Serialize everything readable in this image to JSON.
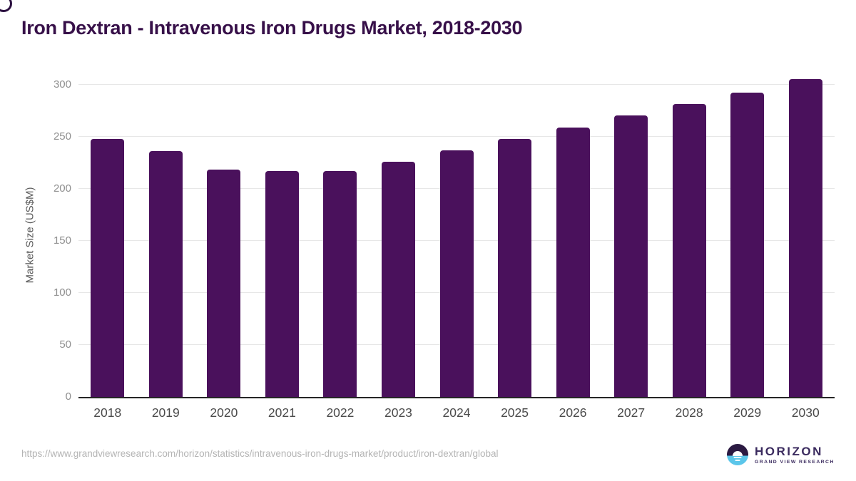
{
  "header": {
    "title": "Iron Dextran - Intravenous Iron Drugs Market, 2018-2030"
  },
  "chart_data": {
    "type": "bar",
    "title": "Iron Dextran - Intravenous Iron Drugs Market, 2018-2030",
    "categories": [
      "2018",
      "2019",
      "2020",
      "2021",
      "2022",
      "2023",
      "2024",
      "2025",
      "2026",
      "2027",
      "2028",
      "2029",
      "2030"
    ],
    "values": [
      248,
      236,
      218,
      217,
      217,
      226,
      237,
      248,
      259,
      270,
      281,
      292,
      305
    ],
    "xlabel": "",
    "ylabel": "Market Size (US$M)",
    "ylim": [
      0,
      310
    ],
    "yticks": [
      0,
      50,
      100,
      150,
      200,
      250,
      300
    ],
    "grid": true,
    "legend": "none",
    "bar_color": "#4A115C",
    "gridline_color": "#e7e7e7",
    "axis_line_color": "#262626",
    "title_color": "#371049"
  },
  "footer": {
    "source_url": "https://www.grandviewresearch.com/horizon/statistics/intravenous-iron-drugs-market/product/iron-dextran/global",
    "logo": {
      "icon": "horizon-sun-circle-icon",
      "brand": "HORIZON",
      "sub_brand": "GRAND VIEW RESEARCH",
      "icon_top_color": "#2b1a42",
      "icon_bottom_color": "#5bc6ea",
      "text_color": "#3a2a5e"
    }
  }
}
